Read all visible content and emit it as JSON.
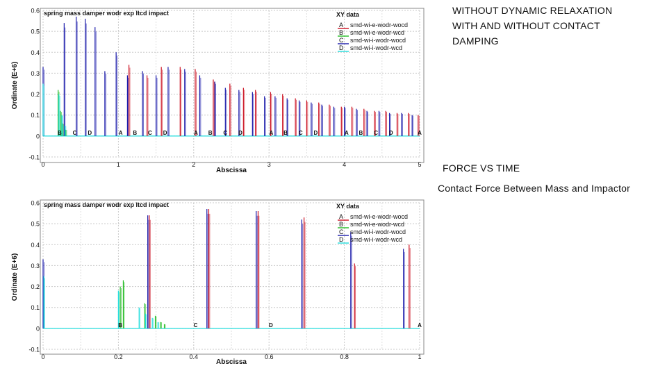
{
  "notes": {
    "top_lines": [
      "WITHOUT DYNAMIC RELAXATION",
      "WITH AND WITHOUT CONTACT",
      "DAMPING"
    ],
    "force_vs_time": "FORCE VS TIME",
    "contact_force": "Contact Force Between Mass and Impactor"
  },
  "colors": {
    "A": "#cc1122",
    "B": "#22bb22",
    "C": "#1a1aaa",
    "D": "#22dddd"
  },
  "chart_data": [
    {
      "type": "line",
      "title": "spring mass damper wodr exp ltcd impact",
      "xlabel": "Abscissa",
      "ylabel": "Ordinate (E+6)",
      "xlim": [
        0,
        5
      ],
      "ylim": [
        -0.1,
        0.6
      ],
      "xticks": [
        "0",
        "1",
        "2",
        "3",
        "4",
        "5"
      ],
      "yticks": [
        "-0.1",
        "0",
        "0.1",
        "0.2",
        "0.3",
        "0.4",
        "0.5",
        "0.6"
      ],
      "grid": true,
      "legend_title": "XY data",
      "legend_position": "top-right",
      "series": [
        {
          "key": "A",
          "name": "smd-wi-e-wodr-wocd",
          "color": "#cc1122",
          "x": [
            1.14,
            1.38,
            1.57,
            1.82,
            2.02,
            2.26,
            2.48,
            2.66,
            2.82,
            3.02,
            3.18,
            3.35,
            3.5,
            3.66,
            3.8,
            3.96,
            4.1,
            4.26,
            4.4,
            4.55,
            4.7,
            4.85,
            4.98
          ],
          "y": [
            0.34,
            0.29,
            0.33,
            0.33,
            0.32,
            0.27,
            0.25,
            0.23,
            0.22,
            0.21,
            0.2,
            0.18,
            0.17,
            0.16,
            0.15,
            0.14,
            0.14,
            0.13,
            0.12,
            0.12,
            0.11,
            0.11,
            0.1
          ]
        },
        {
          "key": "B",
          "name": "smd-wi-e-wodr-wcd",
          "color": "#22bb22",
          "x": [
            0.2,
            0.23,
            0.26,
            0.3
          ],
          "y": [
            0.22,
            0.12,
            0.06,
            0.03
          ]
        },
        {
          "key": "C",
          "name": "smd-wi-i-wodr-wocd",
          "color": "#1a1aaa",
          "x": [
            0,
            0.28,
            0.44,
            0.56,
            0.69,
            0.82,
            0.97,
            1.12,
            1.32,
            1.5,
            1.66,
            1.88,
            2.08,
            2.28,
            2.42,
            2.6,
            2.78,
            2.94,
            3.08,
            3.24,
            3.4,
            3.56,
            3.7,
            3.86,
            4.0,
            4.16,
            4.3,
            4.46,
            4.6,
            4.76,
            4.9
          ],
          "y": [
            0.33,
            0.54,
            0.57,
            0.56,
            0.52,
            0.31,
            0.4,
            0.29,
            0.31,
            0.29,
            0.33,
            0.32,
            0.29,
            0.26,
            0.23,
            0.22,
            0.21,
            0.19,
            0.19,
            0.18,
            0.17,
            0.16,
            0.15,
            0.14,
            0.14,
            0.13,
            0.12,
            0.12,
            0.11,
            0.11,
            0.1
          ]
        },
        {
          "key": "D",
          "name": "smd-wi-i-wodr-wcd",
          "color": "#22dddd",
          "x": [
            0,
            0.21,
            0.25,
            0.29
          ],
          "y": [
            0.25,
            0.2,
            0.1,
            0.05
          ]
        }
      ],
      "curve_labels": [
        {
          "text": "B",
          "x": 0.22
        },
        {
          "text": "C",
          "x": 0.42
        },
        {
          "text": "D",
          "x": 0.62
        },
        {
          "text": "A",
          "x": 1.03
        },
        {
          "text": "B",
          "x": 1.22
        },
        {
          "text": "C",
          "x": 1.42
        },
        {
          "text": "D",
          "x": 1.62
        },
        {
          "text": "A",
          "x": 2.03
        },
        {
          "text": "B",
          "x": 2.22
        },
        {
          "text": "C",
          "x": 2.42
        },
        {
          "text": "D",
          "x": 2.62
        },
        {
          "text": "A",
          "x": 3.03
        },
        {
          "text": "B",
          "x": 3.22
        },
        {
          "text": "C",
          "x": 3.42
        },
        {
          "text": "D",
          "x": 3.62
        },
        {
          "text": "A",
          "x": 4.03
        },
        {
          "text": "B",
          "x": 4.22
        },
        {
          "text": "C",
          "x": 4.42
        },
        {
          "text": "D",
          "x": 4.62
        },
        {
          "text": "A",
          "x": 5.0
        }
      ]
    },
    {
      "type": "line",
      "title": "spring mass damper wodr exp ltcd impact",
      "xlabel": "Abscissa",
      "ylabel": "Ordinate (E+6)",
      "xlim": [
        0,
        1
      ],
      "ylim": [
        -0.1,
        0.6
      ],
      "xticks": [
        "0",
        "0.2",
        "0.4",
        "0.6",
        "0.8",
        "1"
      ],
      "yticks": [
        "-0.1",
        "0",
        "0.1",
        "0.2",
        "0.3",
        "0.4",
        "0.5",
        "0.6"
      ],
      "grid": true,
      "legend_title": "XY data",
      "legend_position": "top-right",
      "series": [
        {
          "key": "A",
          "name": "smd-wi-e-wodr-wocd",
          "color": "#cc1122",
          "x": [
            0.282,
            0.44,
            0.571,
            0.693,
            0.827,
            0.972
          ],
          "y": [
            0.54,
            0.57,
            0.56,
            0.53,
            0.31,
            0.4
          ]
        },
        {
          "key": "B",
          "name": "smd-wi-e-wodr-wcd",
          "color": "#22bb22",
          "x": [
            0.205,
            0.213,
            0.27,
            0.298,
            0.312,
            0.322
          ],
          "y": [
            0.2,
            0.23,
            0.12,
            0.06,
            0.03,
            0.02
          ]
        },
        {
          "key": "C",
          "name": "smd-wi-i-wodr-wocd",
          "color": "#1a1aaa",
          "x": [
            0.0,
            0.278,
            0.435,
            0.566,
            0.687,
            0.817,
            0.957
          ],
          "y": [
            0.33,
            0.54,
            0.57,
            0.56,
            0.52,
            0.46,
            0.38
          ]
        },
        {
          "key": "D",
          "name": "smd-wi-i-wodr-wcd",
          "color": "#22dddd",
          "x": [
            0.002,
            0.2,
            0.255,
            0.272,
            0.29,
            0.305
          ],
          "y": [
            0.25,
            0.18,
            0.1,
            0.07,
            0.05,
            0.03
          ]
        }
      ],
      "curve_labels": [
        {
          "text": "B",
          "x": 0.205
        },
        {
          "text": "C",
          "x": 0.405
        },
        {
          "text": "D",
          "x": 0.605
        },
        {
          "text": "A",
          "x": 1.0
        }
      ]
    }
  ]
}
